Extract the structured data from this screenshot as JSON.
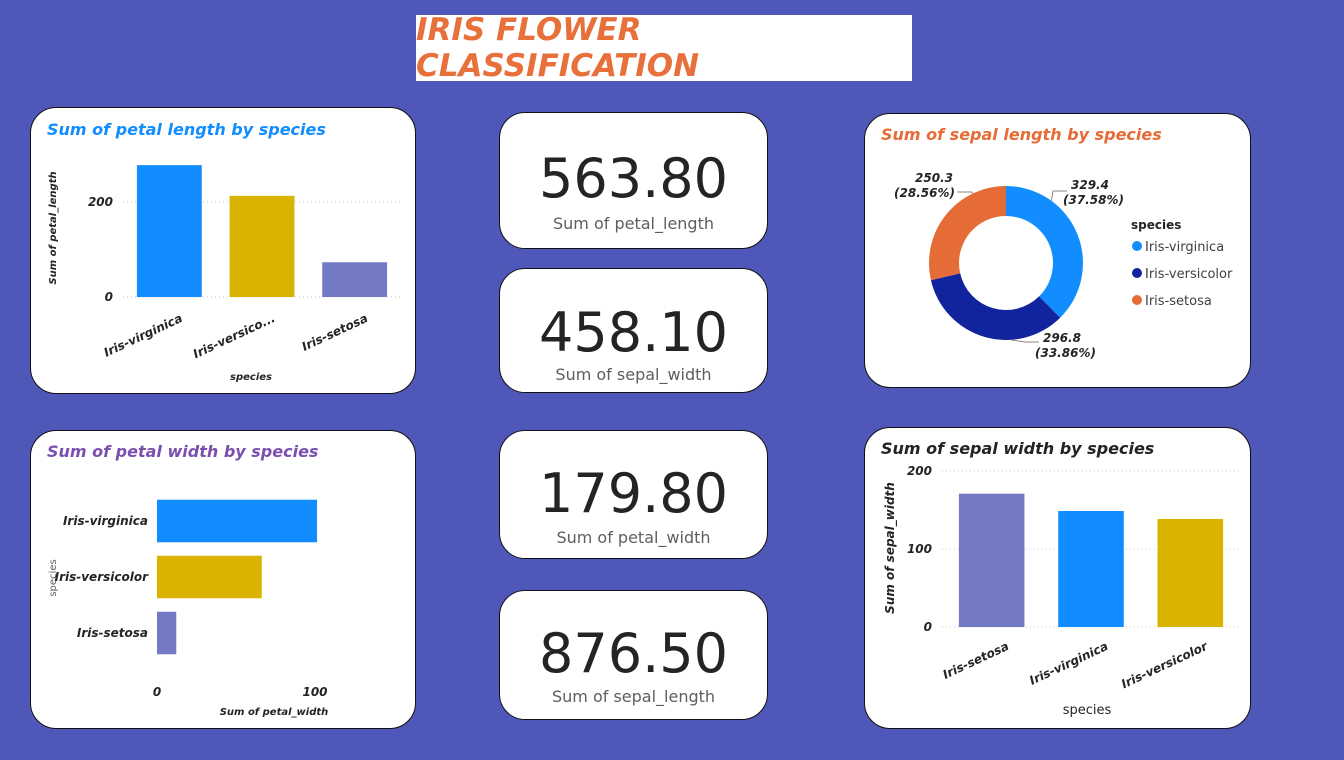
{
  "page": {
    "title": "IRIS FLOWER CLASSIFICATION"
  },
  "colors": {
    "background": "#4f58b8",
    "title": "#e8703a",
    "blue": "#118dff",
    "gold": "#d9b300",
    "lavender": "#7479c6",
    "navy": "#12239e",
    "orange": "#e66c37"
  },
  "kpis": [
    {
      "value": "563.80",
      "label": "Sum of petal_length"
    },
    {
      "value": "458.10",
      "label": "Sum of sepal_width"
    },
    {
      "value": "179.80",
      "label": "Sum of petal_width"
    },
    {
      "value": "876.50",
      "label": "Sum of sepal_length"
    }
  ],
  "chart_data": [
    {
      "id": "petal_length",
      "type": "bar",
      "title": "Sum of petal length by species",
      "title_color": "#118dff",
      "xlabel": "species",
      "ylabel": "Sum of petal_length",
      "categories": [
        "Iris-virginica",
        "Iris-versicolor",
        "Iris-setosa"
      ],
      "category_labels": [
        "Iris-virginica",
        "Iris-versico...",
        "Iris-setosa"
      ],
      "values": [
        277.6,
        213.0,
        73.2
      ],
      "colors": [
        "#118dff",
        "#d9b300",
        "#7479c6"
      ],
      "ylim": [
        0,
        280
      ],
      "yticks": [
        0,
        200
      ],
      "ytick_labels": [
        "0",
        "200"
      ],
      "grid": true
    },
    {
      "id": "sepal_length",
      "type": "pie",
      "donut": true,
      "title": "Sum of sepal length by species",
      "title_color": "#e66c37",
      "legend_title": "species",
      "legend_position": "right",
      "labels": [
        "Iris-virginica",
        "Iris-versicolor",
        "Iris-setosa"
      ],
      "values": [
        329.4,
        296.8,
        250.3
      ],
      "colors": [
        "#118dff",
        "#12239e",
        "#e66c37"
      ],
      "data_labels": [
        {
          "value": "329.4",
          "percent": "(37.58%)"
        },
        {
          "value": "296.8",
          "percent": "(33.86%)"
        },
        {
          "value": "250.3",
          "percent": "(28.56%)"
        }
      ]
    },
    {
      "id": "petal_width",
      "type": "bar",
      "orientation": "horizontal",
      "title": "Sum of petal width by species",
      "title_color": "#7b4fb0",
      "xlabel": "Sum of petal_width",
      "ylabel": "species",
      "categories": [
        "Iris-virginica",
        "Iris-versicolor",
        "Iris-setosa"
      ],
      "values": [
        101.3,
        66.3,
        12.2
      ],
      "colors": [
        "#118dff",
        "#d9b300",
        "#7479c6"
      ],
      "xlim": [
        0,
        100
      ],
      "xticks": [
        0,
        100
      ],
      "xtick_labels": [
        "0",
        "100"
      ],
      "grid": false
    },
    {
      "id": "sepal_width",
      "type": "bar",
      "title": "Sum of sepal width by species",
      "title_color": "#252423",
      "xlabel": "species",
      "ylabel": "Sum of sepal_width",
      "categories": [
        "Iris-setosa",
        "Iris-virginica",
        "Iris-versicolor"
      ],
      "values": [
        170.9,
        148.7,
        138.5
      ],
      "colors": [
        "#7479c6",
        "#118dff",
        "#d9b300"
      ],
      "ylim": [
        0,
        200
      ],
      "yticks": [
        0,
        100,
        200
      ],
      "ytick_labels": [
        "0",
        "100",
        "200"
      ],
      "grid": true
    }
  ]
}
